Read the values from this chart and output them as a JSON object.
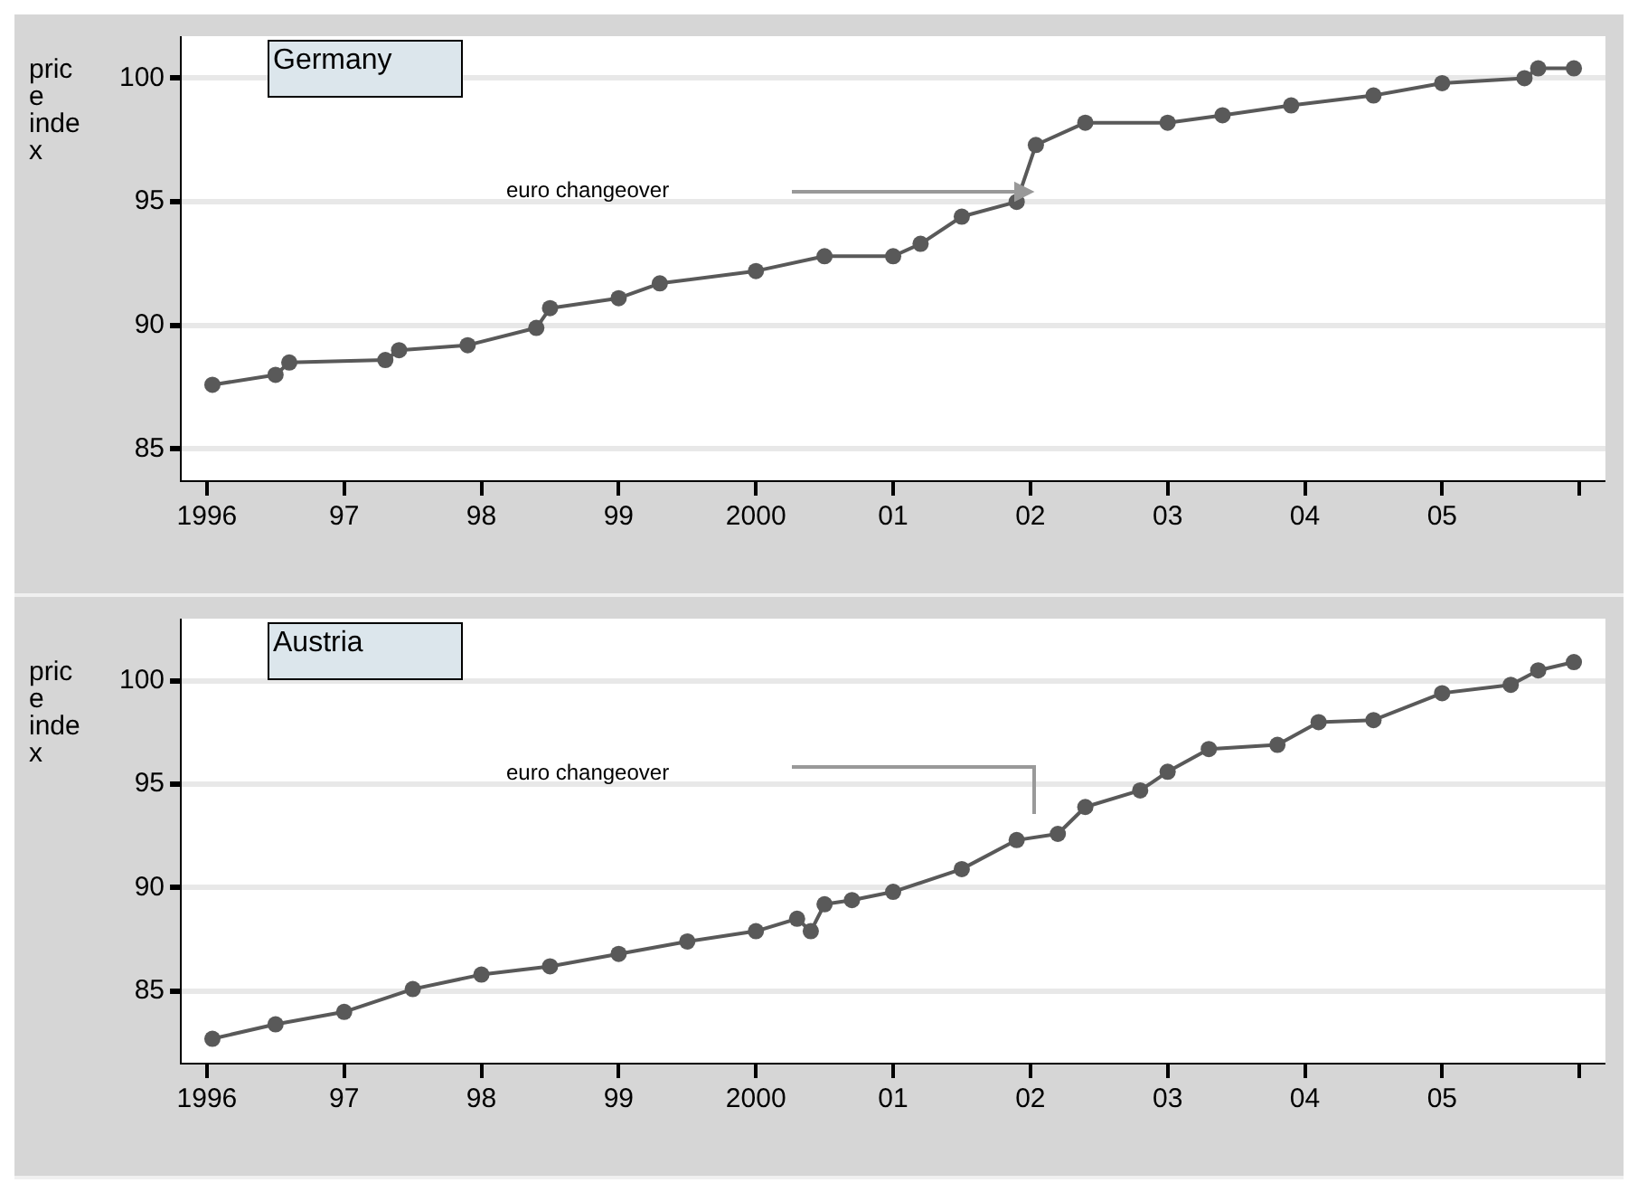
{
  "chart_data": [
    {
      "type": "line",
      "title": "Germany",
      "ylabel": "price index",
      "marker": "circle",
      "grid": "y",
      "legend": false,
      "x": [
        1996.04,
        1996.5,
        1996.6,
        1997.3,
        1997.4,
        1997.9,
        1998.4,
        1998.5,
        1999.0,
        1999.3,
        2000.0,
        2000.5,
        2001.0,
        2001.2,
        2001.5,
        2001.9,
        2002.04,
        2002.4,
        2003.0,
        2003.4,
        2003.9,
        2004.5,
        2005.0,
        2005.6,
        2005.7,
        2005.96
      ],
      "series": [
        {
          "color": "#595959",
          "values": [
            87.6,
            88.0,
            88.5,
            88.6,
            89.0,
            89.2,
            89.9,
            90.7,
            91.1,
            91.7,
            92.2,
            92.8,
            92.8,
            93.3,
            94.4,
            95.0,
            97.3,
            98.2,
            98.2,
            98.5,
            98.9,
            99.3,
            99.8,
            100.0,
            100.4,
            100.4
          ]
        }
      ],
      "xlim": [
        1995.81,
        2006.19
      ],
      "xticks": [
        {
          "value": 1996,
          "label": "1996"
        },
        {
          "value": 1997,
          "label": "97"
        },
        {
          "value": 1998,
          "label": "98"
        },
        {
          "value": 1999,
          "label": "99"
        },
        {
          "value": 2000,
          "label": "2000"
        },
        {
          "value": 2001,
          "label": "01"
        },
        {
          "value": 2002,
          "label": "02"
        },
        {
          "value": 2003,
          "label": "03"
        },
        {
          "value": 2004,
          "label": "04"
        },
        {
          "value": 2005,
          "label": "05"
        },
        {
          "value": 2006,
          "label": null
        }
      ],
      "ylim": [
        83.7,
        101.7
      ],
      "yticks": [
        85,
        90,
        95,
        100
      ],
      "annotations": [
        "euro changeover"
      ]
    },
    {
      "type": "line",
      "title": "Austria",
      "ylabel": "price index",
      "marker": "circle",
      "grid": "y",
      "legend": false,
      "x": [
        1996.04,
        1996.5,
        1997.0,
        1997.5,
        1998.0,
        1998.5,
        1999.0,
        1999.5,
        2000.0,
        2000.3,
        2000.4,
        2000.5,
        2000.7,
        2001.0,
        2001.5,
        2001.9,
        2002.2,
        2002.4,
        2002.8,
        2003.0,
        2003.3,
        2003.8,
        2004.1,
        2004.5,
        2005.0,
        2005.5,
        2005.7,
        2005.96
      ],
      "series": [
        {
          "color": "#595959",
          "values": [
            82.7,
            83.4,
            84.0,
            85.1,
            85.8,
            86.2,
            86.8,
            87.4,
            87.9,
            88.5,
            87.9,
            89.2,
            89.4,
            89.8,
            90.9,
            92.3,
            92.6,
            93.9,
            94.7,
            95.6,
            96.7,
            96.9,
            98.0,
            98.1,
            99.4,
            99.8,
            100.5,
            100.9
          ]
        }
      ],
      "xlim": [
        1995.81,
        2006.19
      ],
      "xticks": [
        {
          "value": 1996,
          "label": "1996"
        },
        {
          "value": 1997,
          "label": "97"
        },
        {
          "value": 1998,
          "label": "98"
        },
        {
          "value": 1999,
          "label": "99"
        },
        {
          "value": 2000,
          "label": "2000"
        },
        {
          "value": 2001,
          "label": "01"
        },
        {
          "value": 2002,
          "label": "02"
        },
        {
          "value": 2003,
          "label": "03"
        },
        {
          "value": 2004,
          "label": "04"
        },
        {
          "value": 2005,
          "label": "05"
        },
        {
          "value": 2006,
          "label": null
        }
      ],
      "ylim": [
        81.5,
        103
      ],
      "yticks": [
        85,
        90,
        95,
        100
      ],
      "annotations": [
        "euro changeover"
      ]
    }
  ]
}
